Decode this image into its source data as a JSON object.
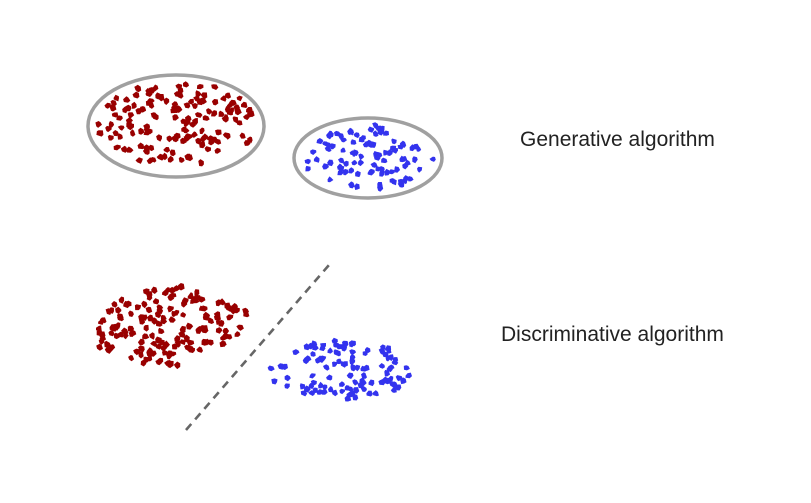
{
  "captions": {
    "generative": "Generative algorithm",
    "discriminative": "Discriminative algorithm"
  },
  "colors": {
    "class_a": "#990000",
    "class_b": "#3333ee",
    "ellipse_outline": "#a0a0a0",
    "boundary_line": "#666666"
  }
}
